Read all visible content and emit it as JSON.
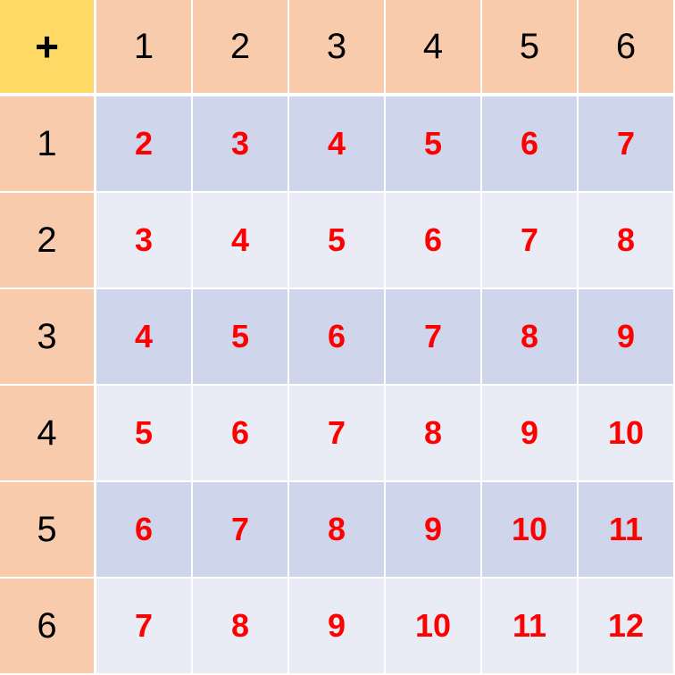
{
  "operator": "+",
  "column_headers": [
    "1",
    "2",
    "3",
    "4",
    "5",
    "6"
  ],
  "row_headers": [
    "1",
    "2",
    "3",
    "4",
    "5",
    "6"
  ],
  "rows": [
    [
      "2",
      "3",
      "4",
      "5",
      "6",
      "7"
    ],
    [
      "3",
      "4",
      "5",
      "6",
      "7",
      "8"
    ],
    [
      "4",
      "5",
      "6",
      "7",
      "8",
      "9"
    ],
    [
      "5",
      "6",
      "7",
      "8",
      "9",
      "10"
    ],
    [
      "6",
      "7",
      "8",
      "9",
      "10",
      "11"
    ],
    [
      "7",
      "8",
      "9",
      "10",
      "11",
      "12"
    ]
  ],
  "colors": {
    "corner_bg": "#ffd966",
    "header_bg": "#f8cbad",
    "band_dark": "#cfd5ea",
    "band_light": "#e9ebf5",
    "value_text": "#ff0000"
  }
}
